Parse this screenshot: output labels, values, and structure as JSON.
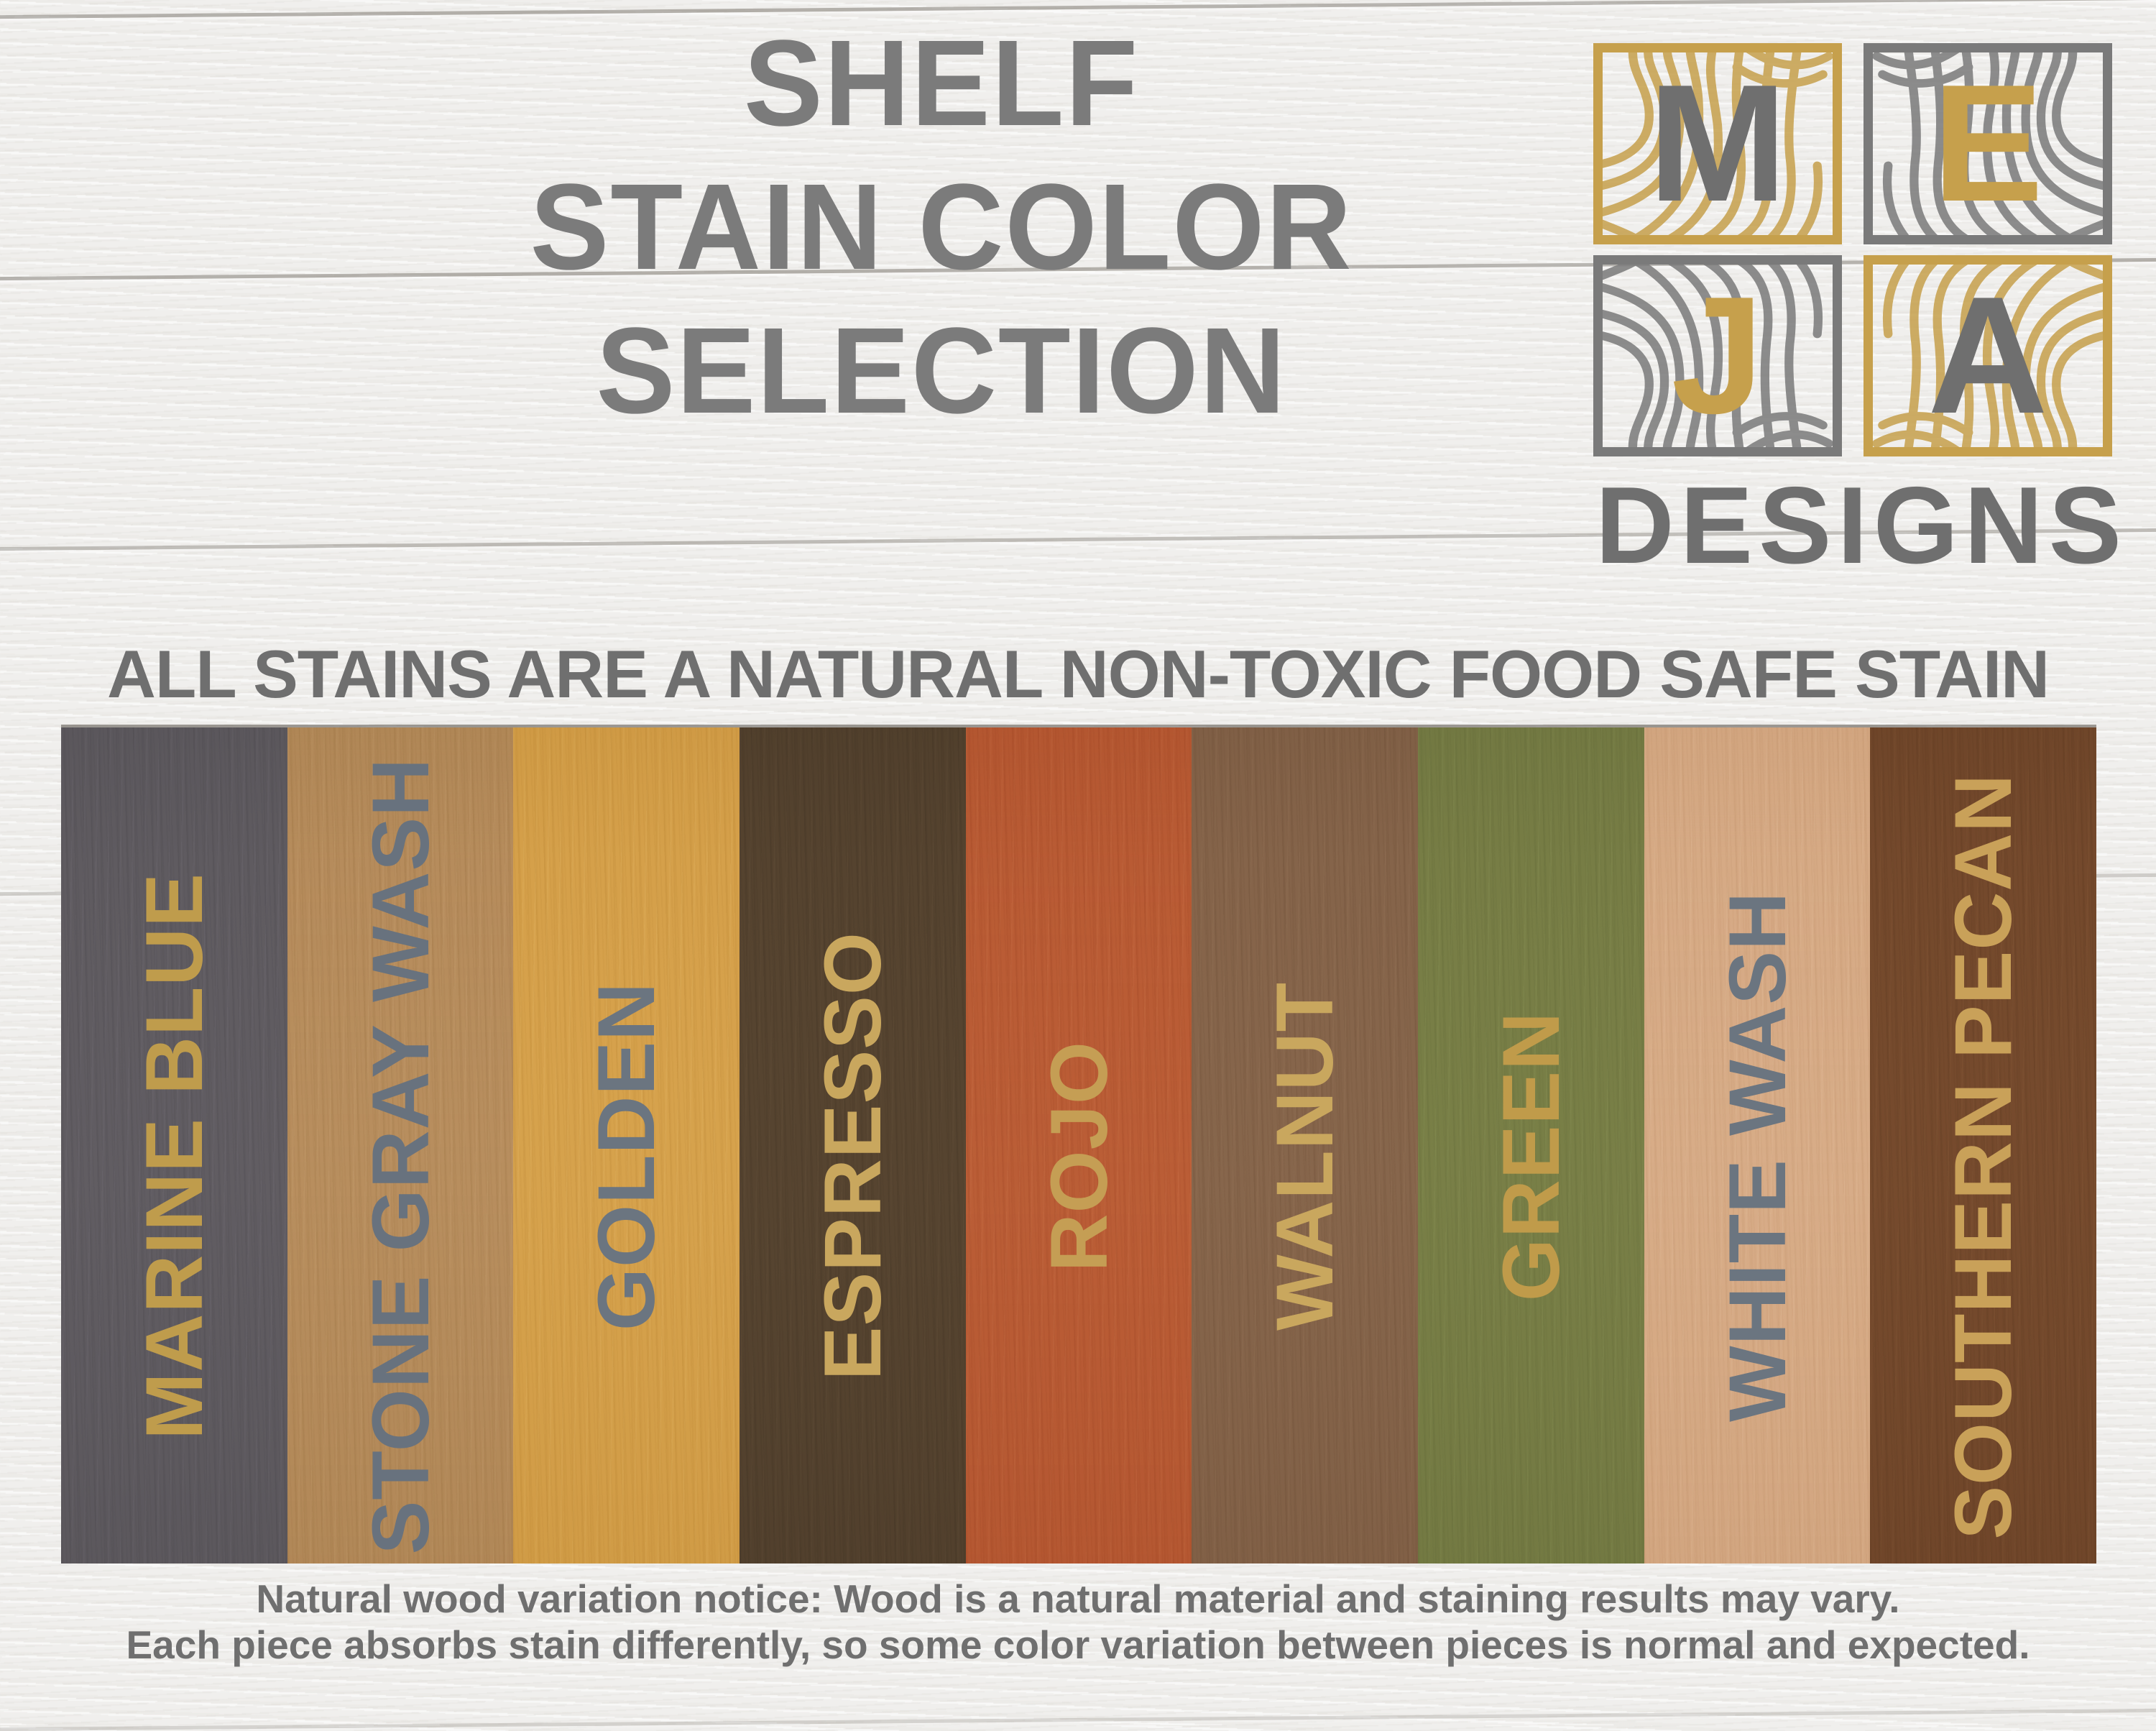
{
  "title": {
    "lines": [
      "SHELF",
      "STAIN COLOR",
      "SELECTION"
    ]
  },
  "logo": {
    "brand": "DESIGNS",
    "colors": {
      "gold": "#c6a04c",
      "gray": "#6f6f6f",
      "gray_frame": "#7a7a7a"
    },
    "tiles": [
      {
        "letter": "M",
        "frame_color": "#c6a04c",
        "letter_color": "#6f6f6f",
        "flip": "none"
      },
      {
        "letter": "E",
        "frame_color": "#7a7a7a",
        "letter_color": "#c6a04c",
        "flip": "x"
      },
      {
        "letter": "J",
        "frame_color": "#7a7a7a",
        "letter_color": "#c6a04c",
        "flip": "y"
      },
      {
        "letter": "A",
        "frame_color": "#c6a04c",
        "letter_color": "#6f6f6f",
        "flip": "xy"
      }
    ]
  },
  "banner": {
    "text": "ALL STAINS ARE A NATURAL NON-TOXIC FOOD SAFE STAIN"
  },
  "swatches": [
    {
      "name": "MARINE BLUE",
      "base": "#5f5b60",
      "dark": "#49464b",
      "light": "#78737c",
      "label_color": "#bf9c4c"
    },
    {
      "name": "STONE GRAY WASH",
      "base": "#b68c5c",
      "dark": "#98713f",
      "light": "#cba677",
      "label_color": "#68727e"
    },
    {
      "name": "GOLDEN",
      "base": "#d5a04a",
      "dark": "#b88330",
      "light": "#e5bb6c",
      "label_color": "#6b7580"
    },
    {
      "name": "ESPRESSO",
      "base": "#55432f",
      "dark": "#3e3021",
      "light": "#6a563f",
      "label_color": "#c9a75e"
    },
    {
      "name": "ROJO",
      "base": "#b95b34",
      "dark": "#9d4322",
      "light": "#cf7a50",
      "label_color": "#c59e54"
    },
    {
      "name": "WALNUT",
      "base": "#85644a",
      "dark": "#6a4b33",
      "light": "#9b7a5e",
      "label_color": "#c9a75e"
    },
    {
      "name": "GREEN",
      "base": "#777d45",
      "dark": "#5f6635",
      "light": "#909a5d",
      "label_color": "#c09b4a"
    },
    {
      "name": "WHITE WASH",
      "base": "#d6aa85",
      "dark": "#bf9068",
      "light": "#e6c2a1",
      "label_color": "#6b7580"
    },
    {
      "name": "SOUTHERN PECAN",
      "base": "#74492c",
      "dark": "#5a371e",
      "light": "#8c5f3c",
      "label_color": "#c9a159"
    }
  ],
  "notice": {
    "lines": [
      "Natural wood variation notice: Wood is a natural material and staining results may vary.",
      "Each piece absorbs stain differently, so some color variation between pieces is normal and expected."
    ]
  }
}
